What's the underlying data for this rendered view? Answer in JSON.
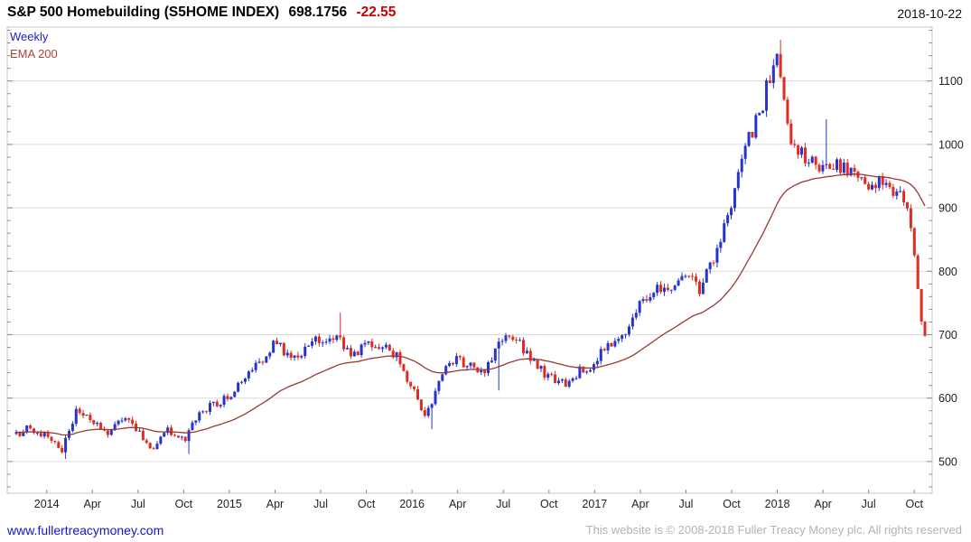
{
  "header": {
    "title": "S&P 500 Homebuilding (S5HOME INDEX)",
    "last_value": "698.1756",
    "change": "-22.55",
    "date": "2018-10-22"
  },
  "legend": {
    "timeframe": "Weekly",
    "overlay": "EMA 200"
  },
  "footer": {
    "site": "www.fullertreacymoney.com",
    "copyright": "This website is © 2008-2018 Fuller Treacy Money plc. All rights reserved"
  },
  "chart_data": {
    "type": "candlestick",
    "title": "S&P 500 Homebuilding (S5HOME INDEX)",
    "timeframe": "weekly",
    "overlay": "EMA 200",
    "ema_period_weeks": 40,
    "ylim": [
      450,
      1185
    ],
    "y_ticks": [
      500,
      600,
      700,
      800,
      900,
      1000,
      1100
    ],
    "y_minor_step": 20,
    "x_range": [
      "2013-11",
      "2018-10-22"
    ],
    "x_labels": [
      {
        "pos": 2,
        "label": "2014"
      },
      {
        "pos": 5,
        "label": "Apr"
      },
      {
        "pos": 8,
        "label": "Jul"
      },
      {
        "pos": 11,
        "label": "Oct"
      },
      {
        "pos": 14,
        "label": "2015"
      },
      {
        "pos": 17,
        "label": "Apr"
      },
      {
        "pos": 20,
        "label": "Jul"
      },
      {
        "pos": 23,
        "label": "Oct"
      },
      {
        "pos": 26,
        "label": "2016"
      },
      {
        "pos": 29,
        "label": "Apr"
      },
      {
        "pos": 32,
        "label": "Jul"
      },
      {
        "pos": 35,
        "label": "Oct"
      },
      {
        "pos": 38,
        "label": "2017"
      },
      {
        "pos": 41,
        "label": "Apr"
      },
      {
        "pos": 44,
        "label": "Jul"
      },
      {
        "pos": 47,
        "label": "Oct"
      },
      {
        "pos": 50,
        "label": "2018"
      },
      {
        "pos": 53,
        "label": "Apr"
      },
      {
        "pos": 56,
        "label": "Jul"
      },
      {
        "pos": 59,
        "label": "Oct"
      }
    ],
    "monthly_anchor_closes": [
      {
        "month": "2013-11",
        "close": 545
      },
      {
        "month": "2013-12",
        "close": 552
      },
      {
        "month": "2014-01",
        "close": 540
      },
      {
        "month": "2014-02",
        "close": 518
      },
      {
        "month": "2014-03",
        "close": 583
      },
      {
        "month": "2014-04",
        "close": 565
      },
      {
        "month": "2014-05",
        "close": 548
      },
      {
        "month": "2014-06",
        "close": 568
      },
      {
        "month": "2014-07",
        "close": 545
      },
      {
        "month": "2014-08",
        "close": 522
      },
      {
        "month": "2014-09",
        "close": 548
      },
      {
        "month": "2014-10",
        "close": 532
      },
      {
        "month": "2014-11",
        "close": 576
      },
      {
        "month": "2014-12",
        "close": 588
      },
      {
        "month": "2015-01",
        "close": 606
      },
      {
        "month": "2015-02",
        "close": 636
      },
      {
        "month": "2015-03",
        "close": 652
      },
      {
        "month": "2015-04",
        "close": 688
      },
      {
        "month": "2015-05",
        "close": 662
      },
      {
        "month": "2015-06",
        "close": 676
      },
      {
        "month": "2015-07",
        "close": 696
      },
      {
        "month": "2015-08",
        "close": 700
      },
      {
        "month": "2015-09",
        "close": 662
      },
      {
        "month": "2015-10",
        "close": 690
      },
      {
        "month": "2015-11",
        "close": 682
      },
      {
        "month": "2015-12",
        "close": 670
      },
      {
        "month": "2016-01",
        "close": 614
      },
      {
        "month": "2016-02",
        "close": 572
      },
      {
        "month": "2016-03",
        "close": 644
      },
      {
        "month": "2016-04",
        "close": 660
      },
      {
        "month": "2016-05",
        "close": 646
      },
      {
        "month": "2016-06",
        "close": 648
      },
      {
        "month": "2016-07",
        "close": 698
      },
      {
        "month": "2016-08",
        "close": 690
      },
      {
        "month": "2016-09",
        "close": 656
      },
      {
        "month": "2016-10",
        "close": 632
      },
      {
        "month": "2016-11",
        "close": 624
      },
      {
        "month": "2016-12",
        "close": 644
      },
      {
        "month": "2017-01",
        "close": 656
      },
      {
        "month": "2017-02",
        "close": 688
      },
      {
        "month": "2017-03",
        "close": 704
      },
      {
        "month": "2017-04",
        "close": 754
      },
      {
        "month": "2017-05",
        "close": 768
      },
      {
        "month": "2017-06",
        "close": 776
      },
      {
        "month": "2017-07",
        "close": 790
      },
      {
        "month": "2017-08",
        "close": 772
      },
      {
        "month": "2017-09",
        "close": 834
      },
      {
        "month": "2017-10",
        "close": 906
      },
      {
        "month": "2017-11",
        "close": 1002
      },
      {
        "month": "2017-12",
        "close": 1062
      },
      {
        "month": "2018-01",
        "close": 1150
      },
      {
        "month": "2018-02",
        "close": 992
      },
      {
        "month": "2018-03",
        "close": 976
      },
      {
        "month": "2018-04",
        "close": 956
      },
      {
        "month": "2018-05",
        "close": 968
      },
      {
        "month": "2018-06",
        "close": 948
      },
      {
        "month": "2018-07",
        "close": 934
      },
      {
        "month": "2018-08",
        "close": 946
      },
      {
        "month": "2018-09",
        "close": 920
      },
      {
        "month": "2018-10",
        "close": 900
      }
    ],
    "final_weeks": [
      868,
      825,
      772,
      720.7256,
      698.1756
    ],
    "last_close": 698.1756,
    "last_change": -22.55,
    "noted_extremes": [
      {
        "month_pos": 3.3,
        "type": "low",
        "value": 504
      },
      {
        "month_pos": 11.3,
        "type": "low",
        "value": 512
      },
      {
        "month_pos": 21.4,
        "type": "high",
        "value": 735
      },
      {
        "month_pos": 27.3,
        "type": "low",
        "value": 551
      },
      {
        "month_pos": 31.7,
        "type": "low",
        "value": 612
      },
      {
        "month_pos": 50.2,
        "type": "high",
        "value": 1165
      },
      {
        "month_pos": 53.3,
        "type": "high",
        "value": 1040
      }
    ],
    "colors": {
      "up": "#2633cc",
      "down": "#e02b20",
      "ema": "#9a3832",
      "grid": "#dcdcdc",
      "frame": "#c9c9c9",
      "tick": "#8a8a8a"
    }
  }
}
